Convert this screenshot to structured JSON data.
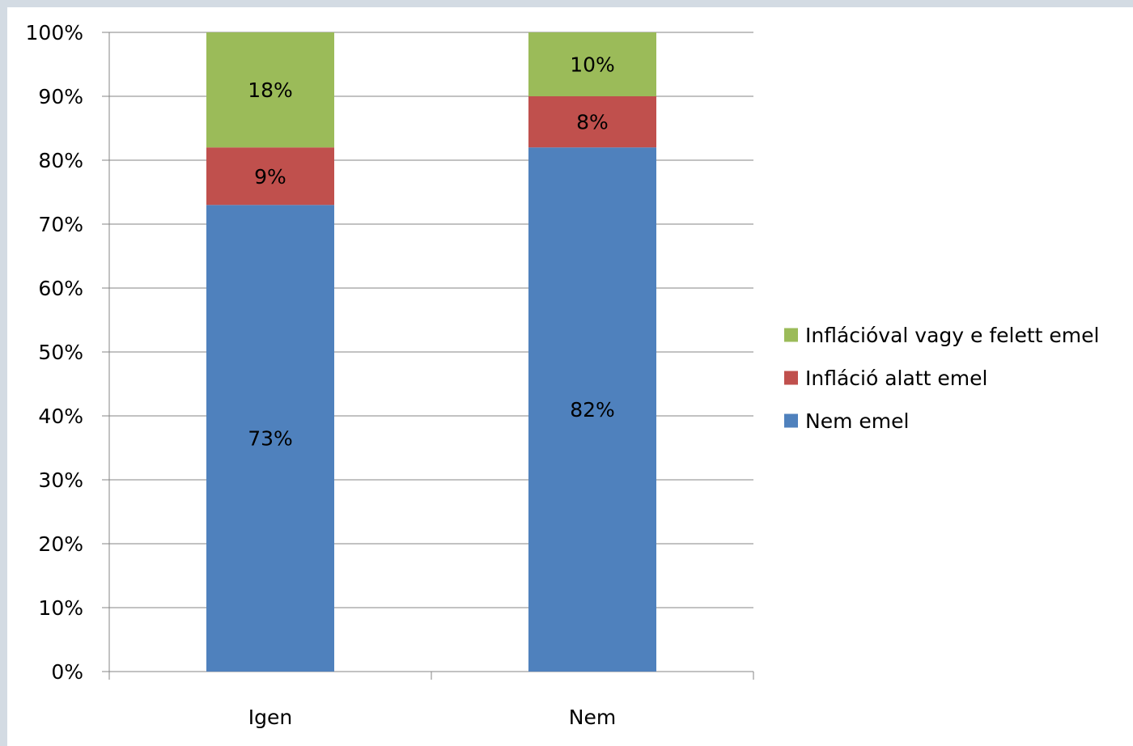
{
  "chart_data": {
    "type": "bar",
    "stacked": true,
    "categories": [
      "Igen",
      "Nem"
    ],
    "series": [
      {
        "name": "Nem emel",
        "color": "#4f81bd",
        "values": [
          73,
          82
        ],
        "labels": [
          "73%",
          "82%"
        ]
      },
      {
        "name": "Infláció alatt emel",
        "color": "#c0504d",
        "values": [
          9,
          8
        ],
        "labels": [
          "9%",
          "8%"
        ]
      },
      {
        "name": "Inflációval vagy e felett emel",
        "color": "#9bbb59",
        "values": [
          18,
          10
        ],
        "labels": [
          "18%",
          "10%"
        ]
      }
    ],
    "ylim": [
      0,
      100
    ],
    "yticks": [
      0,
      10,
      20,
      30,
      40,
      50,
      60,
      70,
      80,
      90,
      100
    ],
    "ytick_labels": [
      "0%",
      "10%",
      "20%",
      "30%",
      "40%",
      "50%",
      "60%",
      "70%",
      "80%",
      "90%",
      "100%"
    ],
    "grid": true,
    "legend_position": "right",
    "gridline_color": "#868686"
  }
}
